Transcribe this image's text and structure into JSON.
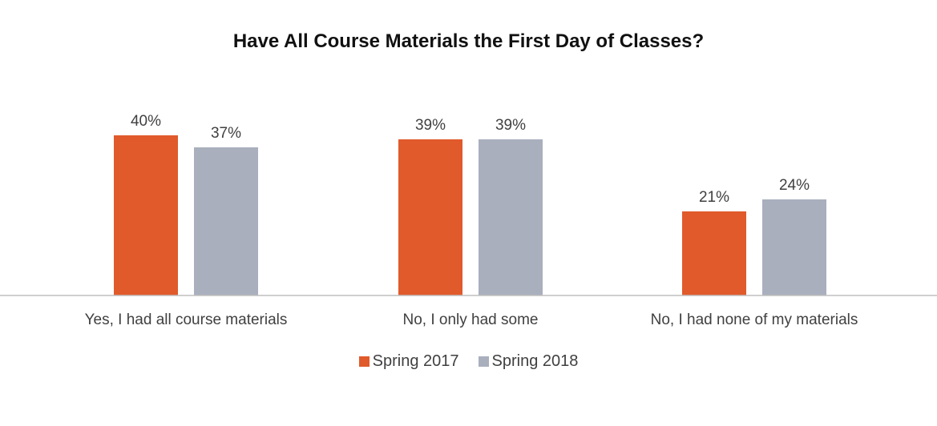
{
  "chart_data": {
    "type": "bar",
    "title": "Have All Course Materials the First Day of Classes?",
    "categories": [
      "Yes, I had all course materials",
      "No, I only had some",
      "No, I had none of my materials"
    ],
    "series": [
      {
        "name": "Spring 2017",
        "color": "#e05a2b",
        "values": [
          40,
          39,
          21
        ],
        "labels": [
          "40%",
          "39%",
          "21%"
        ]
      },
      {
        "name": "Spring 2018",
        "color": "#a9afbd",
        "values": [
          37,
          39,
          24
        ],
        "labels": [
          "37%",
          "39%",
          "24%"
        ]
      }
    ],
    "ylim": [
      0,
      100
    ],
    "grid": false,
    "legend": "bottom-center",
    "xlabel": "",
    "ylabel": ""
  }
}
